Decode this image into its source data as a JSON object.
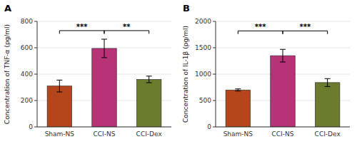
{
  "chart_data": [
    {
      "type": "bar",
      "title": "A",
      "categories": [
        "Sham-NS",
        "CCI-NS",
        "CCI-Dex"
      ],
      "values": [
        310,
        595,
        360
      ],
      "errors": [
        45,
        70,
        25
      ],
      "colors": [
        "#b5451b",
        "#b83278",
        "#6b7c2e"
      ],
      "ylabel": "Concentration of TNF-α (pg/ml)",
      "ylim": [
        0,
        800
      ],
      "yticks": [
        0,
        200,
        400,
        600,
        800
      ],
      "annotations": [
        {
          "x1": "Sham-NS",
          "x2": "CCI-NS",
          "y": 730,
          "label": "***"
        },
        {
          "x1": "CCI-NS",
          "x2": "CCI-Dex",
          "y": 730,
          "label": "**"
        }
      ]
    },
    {
      "type": "bar",
      "title": "B",
      "categories": [
        "Sham-NS",
        "CCI-NS",
        "CCI-Dex"
      ],
      "values": [
        700,
        1350,
        840
      ],
      "errors": [
        20,
        120,
        75
      ],
      "colors": [
        "#b5451b",
        "#b83278",
        "#6b7c2e"
      ],
      "ylabel": "Concentration of IL-1β (pg/ml)",
      "ylim": [
        0,
        2000
      ],
      "yticks": [
        0,
        500,
        1000,
        1500,
        2000
      ],
      "annotations": [
        {
          "x1": "Sham-NS",
          "x2": "CCI-NS",
          "y": 1820,
          "label": "***"
        },
        {
          "x1": "CCI-NS",
          "x2": "CCI-Dex",
          "y": 1820,
          "label": "***"
        }
      ]
    }
  ]
}
